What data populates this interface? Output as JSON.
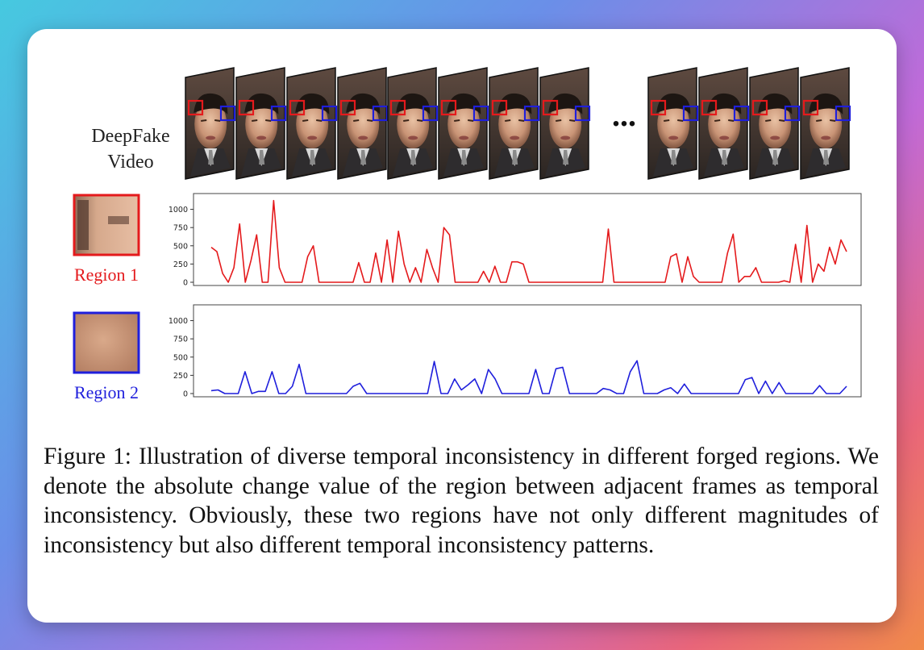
{
  "figure": {
    "video_label": [
      "DeepFake",
      "Video"
    ],
    "ellipsis": "...",
    "region1_label": "Region 1",
    "region2_label": "Region 2",
    "colors": {
      "region1": "#e41a1c",
      "region2": "#1f1fdc"
    }
  },
  "caption": {
    "label": "Figure 1:",
    "text": "Illustration of diverse temporal inconsistency in different forged regions. We denote the absolute change value of the region between adjacent frames as temporal inconsistency. Obviously, these two regions have not only different magnitudes of inconsistency but also different temporal inconsistency patterns."
  },
  "chart_data": [
    {
      "type": "line",
      "series": [
        {
          "name": "Region 1",
          "color": "#e41a1c",
          "values": [
            480,
            420,
            120,
            0,
            200,
            800,
            0,
            300,
            650,
            0,
            0,
            1120,
            200,
            0,
            0,
            0,
            0,
            350,
            500,
            0,
            0,
            0,
            0,
            0,
            0,
            0,
            270,
            0,
            0,
            400,
            0,
            580,
            0,
            700,
            250,
            0,
            200,
            0,
            450,
            200,
            0,
            750,
            650,
            0,
            0,
            0,
            0,
            0,
            150,
            0,
            220,
            0,
            0,
            280,
            280,
            250,
            0,
            0,
            0,
            0,
            0,
            0,
            0,
            0,
            0,
            0,
            0,
            0,
            0,
            0,
            730,
            0,
            0,
            0,
            0,
            0,
            0,
            0,
            0,
            0,
            0,
            350,
            390,
            0,
            350,
            80,
            0,
            0,
            0,
            0,
            0,
            400,
            660,
            0,
            80,
            80,
            200,
            0,
            0,
            0,
            0,
            20,
            0,
            520,
            0,
            780,
            0,
            250,
            150,
            480,
            250,
            580,
            420
          ]
        }
      ],
      "ylim": [
        0,
        1150
      ],
      "yticks": [
        0,
        250,
        500,
        750,
        1000
      ],
      "grid": false
    },
    {
      "type": "line",
      "series": [
        {
          "name": "Region 2",
          "color": "#1f1fdc",
          "values": [
            40,
            50,
            0,
            0,
            0,
            300,
            0,
            30,
            30,
            300,
            0,
            0,
            100,
            400,
            0,
            0,
            0,
            0,
            0,
            0,
            0,
            100,
            140,
            0,
            0,
            0,
            0,
            0,
            0,
            0,
            0,
            0,
            0,
            440,
            0,
            0,
            200,
            50,
            120,
            200,
            0,
            330,
            200,
            0,
            0,
            0,
            0,
            0,
            330,
            0,
            0,
            340,
            360,
            0,
            0,
            0,
            0,
            0,
            70,
            50,
            0,
            0,
            300,
            450,
            0,
            0,
            0,
            50,
            80,
            0,
            130,
            0,
            0,
            0,
            0,
            0,
            0,
            0,
            0,
            190,
            220,
            0,
            170,
            0,
            150,
            0,
            0,
            0,
            0,
            0,
            110,
            0,
            0,
            0,
            100
          ]
        }
      ],
      "ylim": [
        0,
        1150
      ],
      "yticks": [
        0,
        250,
        500,
        750,
        1000
      ],
      "grid": false
    }
  ]
}
